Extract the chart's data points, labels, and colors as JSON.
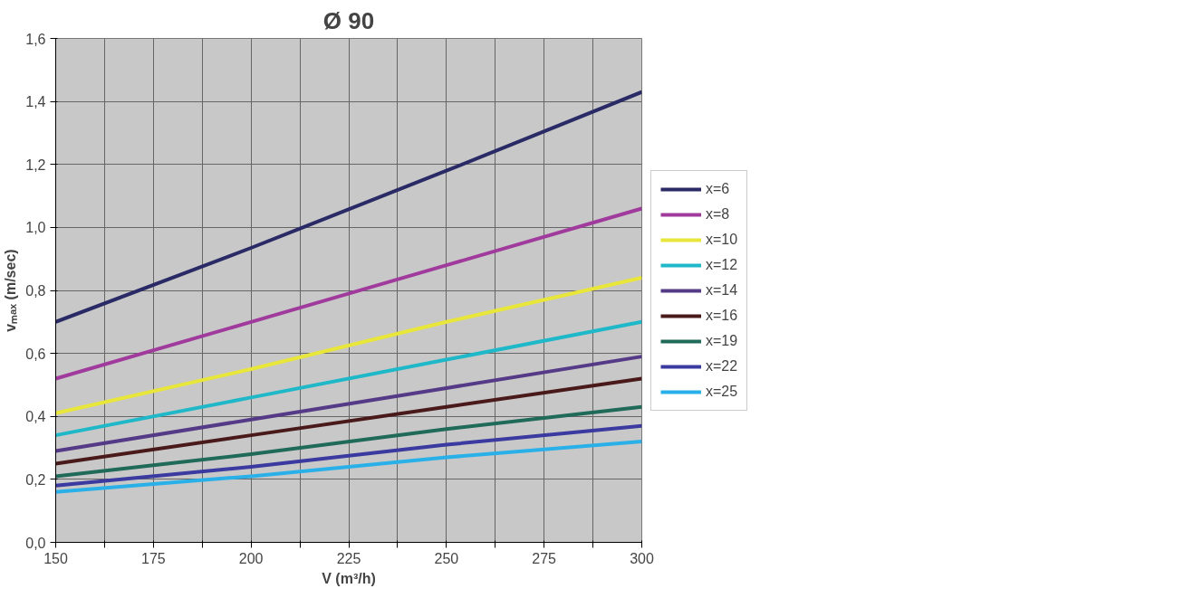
{
  "chart_data": {
    "type": "line",
    "title": "Ø 90",
    "xlabel": "V (m³/h)",
    "ylabel": "vₘₐₓ (m/sec)",
    "x": [
      150,
      200,
      250,
      300
    ],
    "series": [
      {
        "name": "x=6",
        "color": "#2a2a66",
        "values": [
          0.7,
          0.935,
          1.18,
          1.43
        ]
      },
      {
        "name": "x=8",
        "color": "#a03a9c",
        "values": [
          0.52,
          0.7,
          0.88,
          1.06
        ]
      },
      {
        "name": "x=10",
        "color": "#e8e63a",
        "values": [
          0.41,
          0.55,
          0.7,
          0.84
        ]
      },
      {
        "name": "x=12",
        "color": "#1fb8c8",
        "values": [
          0.34,
          0.46,
          0.58,
          0.7
        ]
      },
      {
        "name": "x=14",
        "color": "#553a88",
        "values": [
          0.29,
          0.39,
          0.49,
          0.59
        ]
      },
      {
        "name": "x=16",
        "color": "#4a1a1a",
        "values": [
          0.25,
          0.34,
          0.43,
          0.52
        ]
      },
      {
        "name": "x=19",
        "color": "#1f6a58",
        "values": [
          0.21,
          0.28,
          0.36,
          0.43
        ]
      },
      {
        "name": "x=22",
        "color": "#3a3aa0",
        "values": [
          0.18,
          0.24,
          0.31,
          0.37
        ]
      },
      {
        "name": "x=25",
        "color": "#2ab0e8",
        "values": [
          0.16,
          0.21,
          0.27,
          0.32
        ]
      }
    ],
    "xlim": [
      150,
      300
    ],
    "xticks": [
      150,
      {
        "value": 162.5,
        "label": null
      },
      175,
      {
        "value": 187.5,
        "label": null
      },
      200,
      {
        "value": 212.5,
        "label": null
      },
      225,
      {
        "value": 237.5,
        "label": null
      },
      250,
      {
        "value": 262.5,
        "label": null
      },
      275,
      {
        "value": 287.5,
        "label": null
      },
      300
    ],
    "ylim": [
      0,
      1.6
    ],
    "yticks": [
      {
        "value": 0,
        "label": "0,0"
      },
      {
        "value": 0.2,
        "label": "0,2"
      },
      {
        "value": 0.4,
        "label": "0,4"
      },
      {
        "value": 0.6,
        "label": "0,6"
      },
      {
        "value": 0.8,
        "label": "0,8"
      },
      {
        "value": 1.0,
        "label": "1,0"
      },
      {
        "value": 1.2,
        "label": "1,2"
      },
      {
        "value": 1.4,
        "label": "1,4"
      },
      {
        "value": 1.6,
        "label": "1,6"
      }
    ],
    "grid": true,
    "legend": "right",
    "marker": "none",
    "line_style": "solid"
  }
}
